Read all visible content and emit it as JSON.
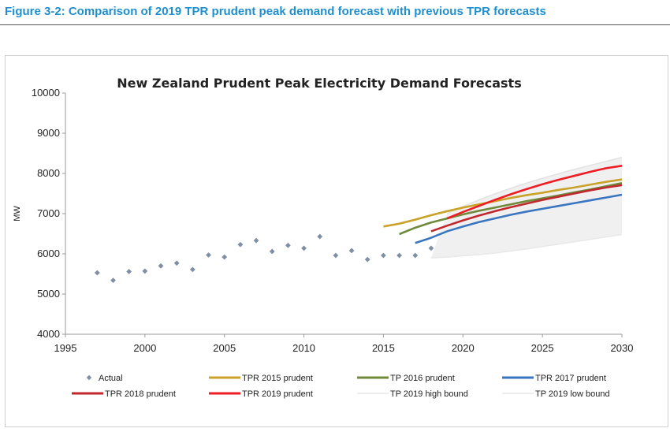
{
  "figure": {
    "caption": "Figure 3-2: Comparison of 2019 TPR prudent peak demand forecast with previous TPR forecasts"
  },
  "colors": {
    "caption": "#1f8fce",
    "actual": "#7f8fa6",
    "tpr2015": "#c9a227",
    "tp2016": "#6f8a3a",
    "tpr2017": "#3a76c0",
    "tpr2018": "#c0282d",
    "tpr2019": "#ee1c25",
    "band": "#e8e8e8"
  },
  "chart_data": {
    "type": "line",
    "title": "New Zealand Prudent Peak Electricity Demand Forecasts",
    "xlabel": "",
    "ylabel": "MW",
    "xlim": [
      1995,
      2030
    ],
    "ylim": [
      4000,
      10000
    ],
    "x_ticks": [
      "1995",
      "2000",
      "2005",
      "2010",
      "2015",
      "2020",
      "2025",
      "2030"
    ],
    "y_ticks": [
      "4000",
      "5000",
      "6000",
      "7000",
      "8000",
      "9000",
      "10000"
    ],
    "grid": false,
    "legend_position": "bottom",
    "legend": [
      "Actual",
      "TPR 2015 prudent",
      "TP 2016  prudent",
      "TPR 2017  prudent",
      "TPR 2018 prudent",
      "TPR 2019 prudent",
      "TP 2019 high bound",
      "TP 2019 low bound"
    ],
    "series": [
      {
        "name": "Actual",
        "type": "scatter",
        "x": [
          1997,
          1998,
          1999,
          2000,
          2001,
          2002,
          2003,
          2004,
          2005,
          2006,
          2007,
          2008,
          2009,
          2010,
          2011,
          2012,
          2013,
          2014,
          2015,
          2016,
          2017,
          2018
        ],
        "y": [
          5530,
          5340,
          5560,
          5570,
          5700,
          5770,
          5610,
          5970,
          5920,
          6230,
          6330,
          6060,
          6210,
          6140,
          6430,
          5960,
          6080,
          5860,
          5960,
          5960,
          5960,
          6140
        ]
      },
      {
        "name": "TPR 2015 prudent",
        "type": "line",
        "x": [
          2015,
          2016,
          2017,
          2018,
          2019,
          2020,
          2021,
          2022,
          2023,
          2024,
          2025,
          2026,
          2027,
          2028,
          2029,
          2030
        ],
        "y": [
          6680,
          6750,
          6850,
          6960,
          7060,
          7150,
          7230,
          7310,
          7390,
          7460,
          7520,
          7590,
          7650,
          7720,
          7790,
          7850
        ]
      },
      {
        "name": "TP 2016  prudent",
        "type": "line",
        "x": [
          2016,
          2017,
          2018,
          2019,
          2020,
          2021,
          2022,
          2023,
          2024,
          2025,
          2026,
          2027,
          2028,
          2029,
          2030
        ],
        "y": [
          6490,
          6650,
          6780,
          6880,
          6980,
          7070,
          7150,
          7230,
          7310,
          7380,
          7450,
          7530,
          7600,
          7680,
          7760
        ]
      },
      {
        "name": "TPR 2017  prudent",
        "type": "line",
        "x": [
          2017,
          2018,
          2019,
          2020,
          2021,
          2022,
          2023,
          2024,
          2025,
          2026,
          2027,
          2028,
          2029,
          2030
        ],
        "y": [
          6270,
          6400,
          6560,
          6680,
          6790,
          6880,
          6970,
          7050,
          7120,
          7190,
          7260,
          7330,
          7400,
          7470
        ]
      },
      {
        "name": "TPR 2018 prudent",
        "type": "line",
        "x": [
          2018,
          2019,
          2020,
          2021,
          2022,
          2023,
          2024,
          2025,
          2026,
          2027,
          2028,
          2029,
          2030
        ],
        "y": [
          6560,
          6700,
          6830,
          6950,
          7060,
          7160,
          7250,
          7340,
          7420,
          7500,
          7580,
          7650,
          7710
        ]
      },
      {
        "name": "TPR 2019 prudent",
        "type": "line",
        "x": [
          2019,
          2020,
          2021,
          2022,
          2023,
          2024,
          2025,
          2026,
          2027,
          2028,
          2029,
          2030
        ],
        "y": [
          6880,
          7040,
          7190,
          7340,
          7480,
          7610,
          7730,
          7840,
          7940,
          8040,
          8130,
          8190
        ]
      },
      {
        "name": "TP 2019 high bound",
        "type": "line",
        "x": [
          2019,
          2020,
          2021,
          2022,
          2023,
          2024,
          2025,
          2026,
          2027,
          2028,
          2029,
          2030
        ],
        "y": [
          7000,
          7180,
          7340,
          7490,
          7630,
          7760,
          7880,
          7990,
          8100,
          8200,
          8300,
          8400
        ]
      },
      {
        "name": "TP 2019 low bound",
        "type": "line",
        "x": [
          2018,
          2019,
          2020,
          2021,
          2022,
          2023,
          2024,
          2025,
          2026,
          2027,
          2028,
          2029,
          2030
        ],
        "y": [
          5900,
          5920,
          5950,
          5980,
          6020,
          6070,
          6120,
          6180,
          6240,
          6300,
          6360,
          6420,
          6480
        ]
      }
    ]
  }
}
